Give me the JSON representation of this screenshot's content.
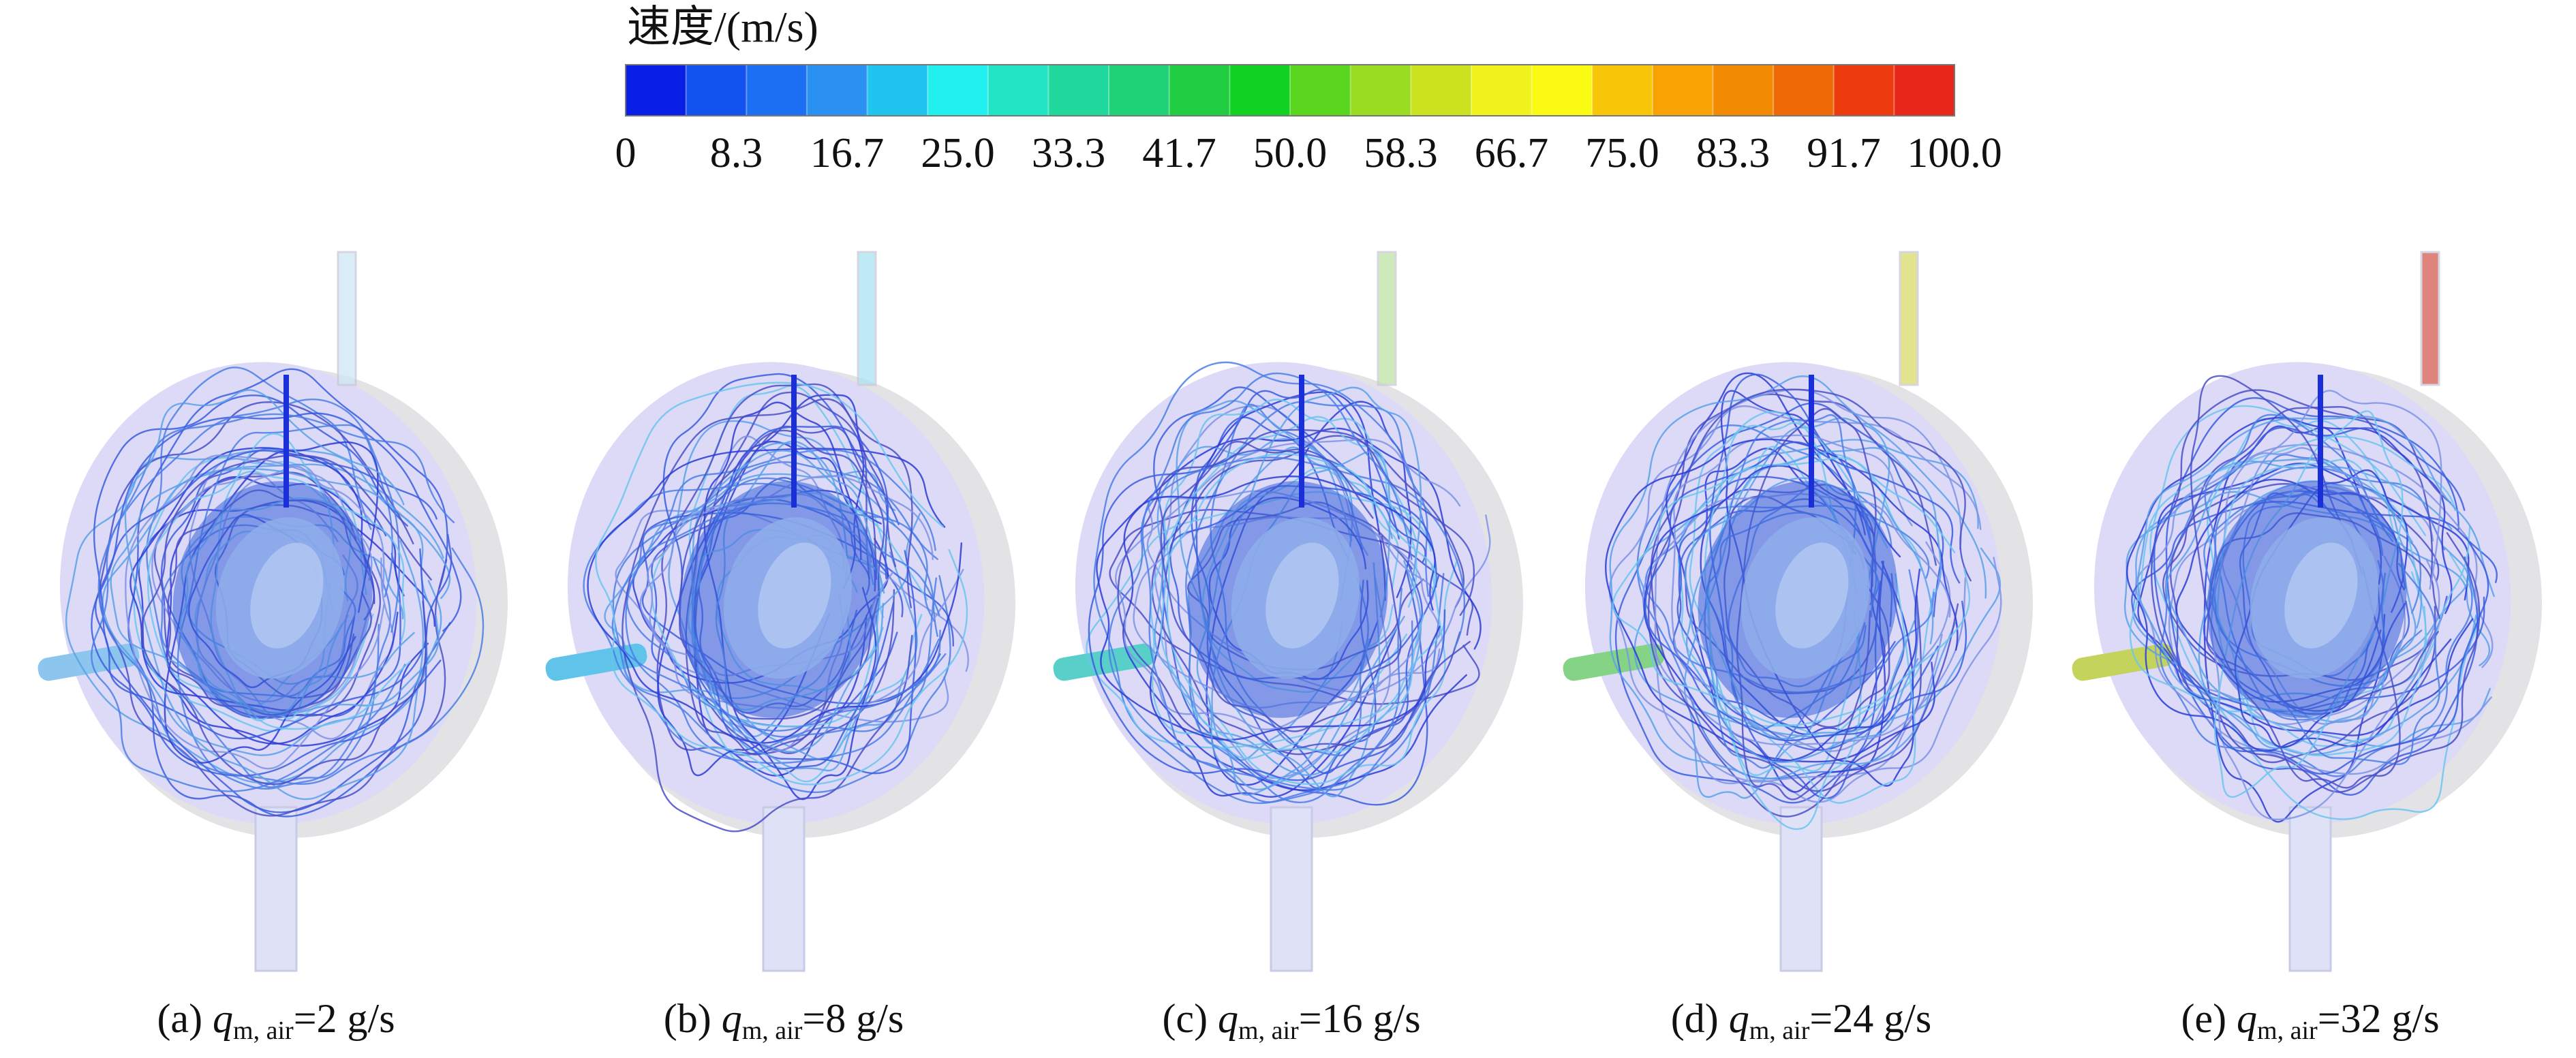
{
  "legend": {
    "title": "速度/(m/s)",
    "ticks": [
      "0",
      "8.3",
      "16.7",
      "25.0",
      "33.3",
      "41.7",
      "50.0",
      "58.3",
      "66.7",
      "75.0",
      "83.3",
      "91.7",
      "100.0"
    ],
    "colors": [
      "#0a1fe6",
      "#1252ee",
      "#1a6ff2",
      "#2a90f2",
      "#1fc4ef",
      "#22f0ef",
      "#21e5c4",
      "#20d89c",
      "#20d277",
      "#20cc40",
      "#0fd221",
      "#58d51c",
      "#99dc20",
      "#cbe21f",
      "#f2f31d",
      "#fafa12",
      "#f7c609",
      "#f8a303",
      "#f28a02",
      "#ef6a07",
      "#ee3b0e",
      "#e8261a"
    ],
    "min": 0,
    "max": 100.0,
    "unit": "m/s"
  },
  "panels": [
    {
      "prefix": "(a) ",
      "var": "q",
      "sub": "m, air",
      "value": "=2 g/s",
      "inlet_color": "#8cc6ee",
      "outlet_color": "#cfe6f7"
    },
    {
      "prefix": "(b) ",
      "var": "q",
      "sub": "m, air",
      "value": "=8 g/s",
      "inlet_color": "#5fc3ea",
      "outlet_color": "#a9e4f3"
    },
    {
      "prefix": "(c) ",
      "var": "q",
      "sub": "m, air",
      "value": "=16 g/s",
      "inlet_color": "#58d0c9",
      "outlet_color": "#bfe3a3"
    },
    {
      "prefix": "(d) ",
      "var": "q",
      "sub": "m, air",
      "value": "=24 g/s",
      "inlet_color": "#85d486",
      "outlet_color": "#d9dc6a"
    },
    {
      "prefix": "(e) ",
      "var": "q",
      "sub": "m, air",
      "value": "=32 g/s",
      "inlet_color": "#c4d35b",
      "outlet_color": "#d65a52"
    }
  ]
}
